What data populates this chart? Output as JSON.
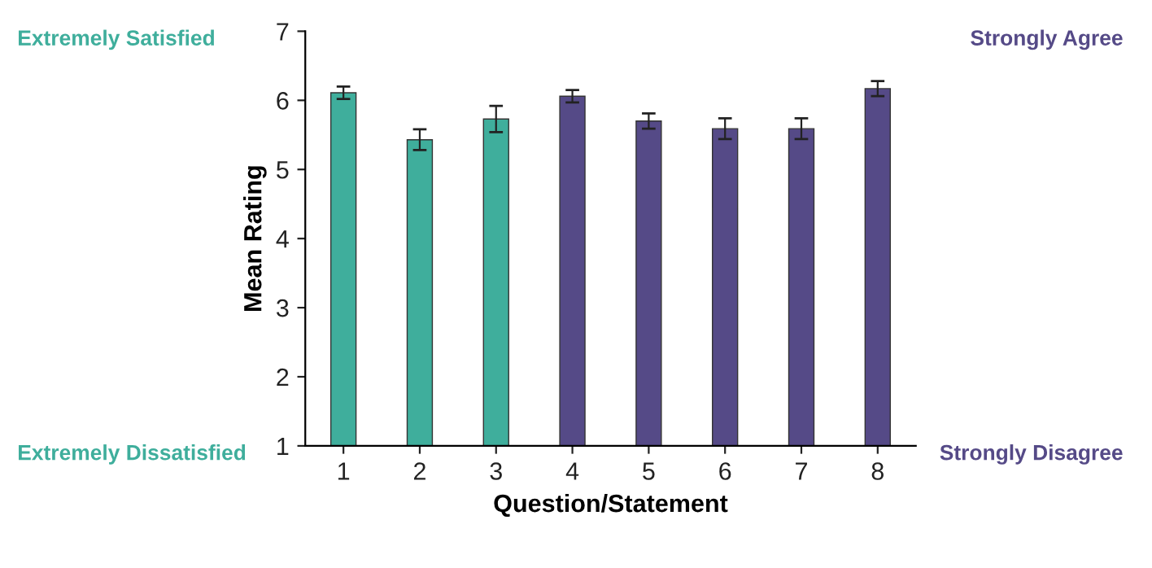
{
  "chart_data": {
    "type": "bar",
    "xlabel": "Question/Statement",
    "ylabel": "Mean Rating",
    "categories": [
      "1",
      "2",
      "3",
      "4",
      "5",
      "6",
      "7",
      "8"
    ],
    "values": [
      6.11,
      5.43,
      5.73,
      6.06,
      5.7,
      5.59,
      5.59,
      6.17
    ],
    "errors": [
      0.09,
      0.15,
      0.19,
      0.09,
      0.11,
      0.15,
      0.15,
      0.11
    ],
    "colors": [
      "#3fae9c",
      "#3fae9c",
      "#3fae9c",
      "#554a87",
      "#554a87",
      "#554a87",
      "#554a87",
      "#554a87"
    ],
    "annotations": [
      "Extremely Satisfied",
      "Extremely Dissatisfied",
      "Strongly Agree",
      "Strongly Disagree"
    ],
    "ylim": [
      1,
      7
    ],
    "yticks": [
      1,
      2,
      3,
      4,
      5,
      6,
      7
    ],
    "grid": false,
    "legend": false
  }
}
